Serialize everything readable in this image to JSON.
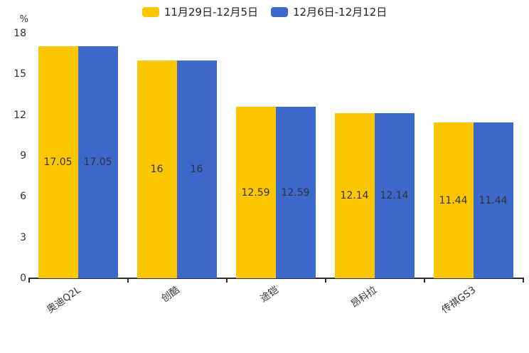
{
  "chart_data": {
    "type": "bar",
    "title": "",
    "categories": [
      "奥迪Q2L",
      "创酷",
      "途铠",
      "昂科拉",
      "传祺GS3"
    ],
    "series": [
      {
        "name": "11月29日-12月5日",
        "color": "#FDC602",
        "values": [
          17.05,
          16,
          12.59,
          12.14,
          11.44
        ]
      },
      {
        "name": "12月6日-12月12日",
        "color": "#3B68C9",
        "values": [
          17.05,
          16,
          12.59,
          12.14,
          11.44
        ]
      }
    ],
    "ylabel": "%",
    "y_ticks": [
      0,
      3,
      6,
      9,
      12,
      15,
      18
    ],
    "ylim": [
      0,
      18
    ],
    "grid": false,
    "legend_position": "top",
    "value_labels": "inside-center",
    "x_tick_rotation": 35,
    "axis_color": "#2b2b2b",
    "text_color": "#333333"
  }
}
